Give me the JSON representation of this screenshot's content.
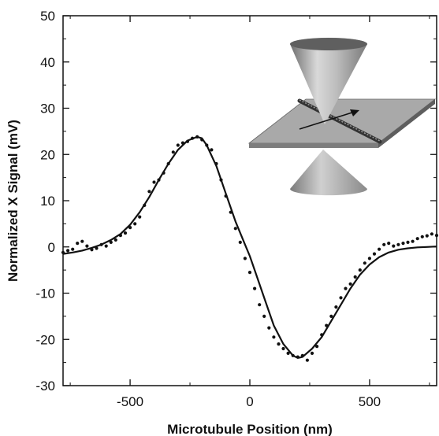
{
  "chart_data": {
    "type": "scatter",
    "xlabel": "Microtubule Position (nm)",
    "ylabel": "Normalized X Signal (mV)",
    "xlim": [
      -780,
      780
    ],
    "ylim": [
      -30,
      50
    ],
    "x_ticks": [
      -500,
      0,
      500
    ],
    "y_ticks": [
      -30,
      -20,
      -10,
      0,
      10,
      20,
      30,
      40,
      50
    ],
    "x_tick_labels": [
      "-500",
      "0",
      "500"
    ],
    "y_tick_labels": [
      "-30",
      "-20",
      "-10",
      "0",
      "10",
      "20",
      "30",
      "40",
      "50"
    ],
    "grid": false,
    "legend": "none",
    "inset": "optical-trap-cone-diagram-with-microtubule-on-slide",
    "series": [
      {
        "kind": "scatter",
        "x": [
          -780,
          -760,
          -740,
          -720,
          -700,
          -680,
          -660,
          -640,
          -620,
          -600,
          -580,
          -560,
          -540,
          -520,
          -500,
          -480,
          -460,
          -440,
          -420,
          -400,
          -380,
          -360,
          -340,
          -320,
          -300,
          -280,
          -260,
          -240,
          -220,
          -200,
          -180,
          -160,
          -140,
          -120,
          -100,
          -80,
          -60,
          -40,
          -20,
          0,
          20,
          40,
          60,
          80,
          100,
          120,
          140,
          160,
          180,
          200,
          220,
          240,
          260,
          280,
          300,
          320,
          340,
          360,
          380,
          400,
          420,
          440,
          460,
          480,
          500,
          520,
          540,
          560,
          580,
          600,
          620,
          640,
          660,
          680,
          700,
          720,
          740,
          760,
          780
        ],
        "y": [
          -1.2,
          -0.8,
          -0.5,
          0.8,
          1.2,
          0.2,
          -0.6,
          -0.3,
          0.5,
          0.2,
          1.0,
          1.5,
          2.5,
          3.0,
          4.2,
          5.0,
          6.5,
          9.0,
          12.0,
          14.0,
          14.5,
          16.0,
          18.0,
          20.5,
          22.0,
          22.5,
          22.8,
          23.5,
          23.8,
          23.2,
          22.0,
          21.0,
          18.0,
          14.5,
          11.0,
          7.5,
          4.0,
          1.0,
          -2.5,
          -5.5,
          -9.0,
          -12.5,
          -15.0,
          -17.5,
          -19.5,
          -21.0,
          -22.0,
          -23.0,
          -23.5,
          -23.8,
          -23.5,
          -24.5,
          -23.0,
          -21.5,
          -19.0,
          -17.0,
          -15.0,
          -13.0,
          -11.0,
          -9.0,
          -8.0,
          -6.5,
          -5.0,
          -3.5,
          -2.5,
          -1.5,
          -0.5,
          0.5,
          0.8,
          0.2,
          0.5,
          0.8,
          1.0,
          1.2,
          1.8,
          2.2,
          2.4,
          2.8,
          2.5
        ]
      },
      {
        "kind": "line",
        "x": [
          -780,
          -740,
          -700,
          -660,
          -620,
          -580,
          -540,
          -500,
          -460,
          -420,
          -380,
          -340,
          -300,
          -260,
          -220,
          -200,
          -180,
          -140,
          -100,
          -60,
          -20,
          0,
          20,
          60,
          100,
          140,
          180,
          200,
          220,
          260,
          300,
          340,
          380,
          420,
          460,
          500,
          540,
          580,
          620,
          660,
          700,
          740,
          780
        ],
        "y": [
          -1.5,
          -1.2,
          -0.8,
          -0.2,
          0.5,
          1.5,
          2.8,
          4.8,
          7.5,
          10.8,
          14.5,
          18.0,
          21.0,
          23.0,
          23.8,
          23.5,
          22.0,
          17.5,
          11.5,
          5.5,
          0.5,
          -2.0,
          -5.0,
          -11.0,
          -17.0,
          -21.0,
          -23.5,
          -24.0,
          -23.8,
          -22.0,
          -19.5,
          -16.0,
          -12.5,
          -9.0,
          -6.0,
          -3.8,
          -2.2,
          -1.2,
          -0.6,
          -0.3,
          -0.1,
          0.0,
          0.1
        ]
      }
    ]
  }
}
